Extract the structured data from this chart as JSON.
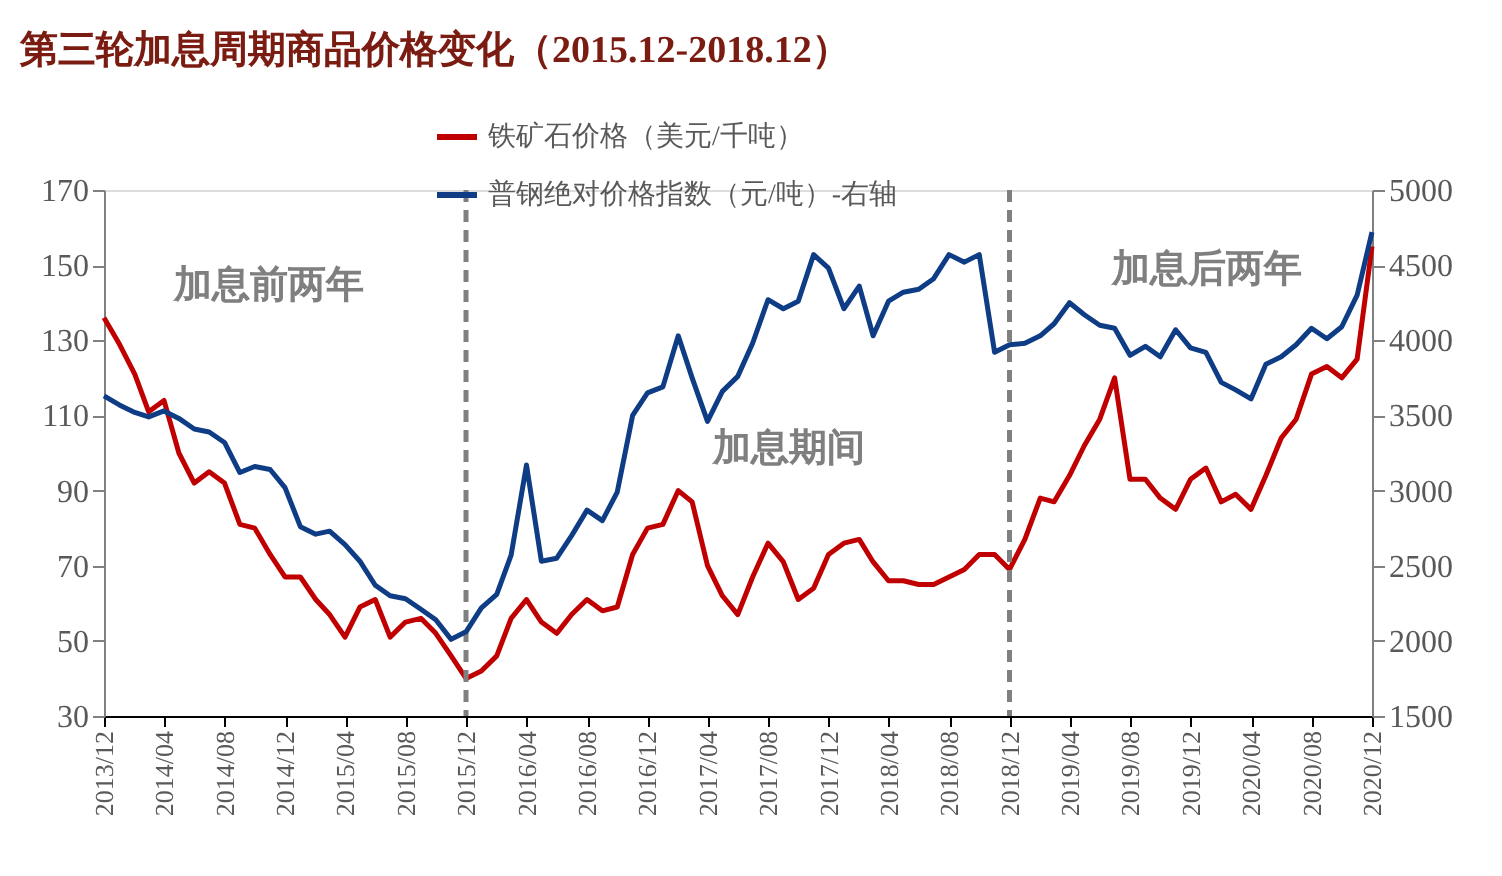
{
  "chart_data": {
    "type": "line",
    "title": "第三轮加息周期商品价格变化（2015.12-2018.12）",
    "x": [
      "2013-12",
      "2014-01",
      "2014-02",
      "2014-03",
      "2014-04",
      "2014-05",
      "2014-06",
      "2014-07",
      "2014-08",
      "2014-09",
      "2014-10",
      "2014-11",
      "2014-12",
      "2015-01",
      "2015-02",
      "2015-03",
      "2015-04",
      "2015-05",
      "2015-06",
      "2015-07",
      "2015-08",
      "2015-09",
      "2015-10",
      "2015-11",
      "2015-12",
      "2016-01",
      "2016-02",
      "2016-03",
      "2016-04",
      "2016-05",
      "2016-06",
      "2016-07",
      "2016-08",
      "2016-09",
      "2016-10",
      "2016-11",
      "2016-12",
      "2017-01",
      "2017-02",
      "2017-03",
      "2017-04",
      "2017-05",
      "2017-06",
      "2017-07",
      "2017-08",
      "2017-09",
      "2017-10",
      "2017-11",
      "2017-12",
      "2018-01",
      "2018-02",
      "2018-03",
      "2018-04",
      "2018-05",
      "2018-06",
      "2018-07",
      "2018-08",
      "2018-09",
      "2018-10",
      "2018-11",
      "2018-12",
      "2019-01",
      "2019-02",
      "2019-03",
      "2019-04",
      "2019-05",
      "2019-06",
      "2019-07",
      "2019-08",
      "2019-09",
      "2019-10",
      "2019-11",
      "2019-12",
      "2020-01",
      "2020-02",
      "2020-03",
      "2020-04",
      "2020-05",
      "2020-06",
      "2020-07",
      "2020-08",
      "2020-09",
      "2020-10",
      "2020-11",
      "2020-12"
    ],
    "series": [
      {
        "name": "铁矿石价格（美元/千吨）",
        "color": "#c00000",
        "values": [
          136,
          129,
          121,
          111,
          114,
          100,
          92,
          95,
          92,
          81,
          80,
          73,
          67,
          67,
          61,
          57,
          51,
          59,
          61,
          51,
          55,
          56,
          52,
          46,
          40,
          42,
          46,
          56,
          61,
          55,
          52,
          57,
          61,
          58,
          59,
          73,
          80,
          81,
          90,
          87,
          70,
          62,
          57,
          67,
          76,
          71,
          61,
          64,
          73,
          76,
          77,
          71,
          66,
          66,
          65,
          65,
          67,
          69,
          73,
          73,
          69,
          77,
          88,
          87,
          94,
          102,
          109,
          120,
          93,
          93,
          88,
          85,
          93,
          96,
          87,
          89,
          85,
          94,
          104,
          109,
          121,
          123,
          120,
          125,
          155
        ]
      },
      {
        "name": "普钢绝对价格指数（元/吨）-右轴",
        "color": "#0e3c85",
        "axis": "y2",
        "values": [
          3630,
          3570,
          3520,
          3490,
          3530,
          3480,
          3410,
          3390,
          3320,
          3120,
          3160,
          3140,
          3020,
          2760,
          2710,
          2730,
          2640,
          2530,
          2370,
          2300,
          2280,
          2210,
          2140,
          2010,
          2060,
          2220,
          2310,
          2570,
          3170,
          2530,
          2550,
          2700,
          2870,
          2800,
          2990,
          3500,
          3650,
          3690,
          4030,
          3750,
          3460,
          3660,
          3760,
          3980,
          4270,
          4210,
          4260,
          4570,
          4480,
          4210,
          4360,
          4030,
          4260,
          4320,
          4340,
          4410,
          4570,
          4520,
          4570,
          3920,
          3970,
          3980,
          4030,
          4110,
          4250,
          4170,
          4100,
          4080,
          3900,
          3960,
          3890,
          4070,
          3950,
          3920,
          3720,
          3670,
          3610,
          3840,
          3890,
          3970,
          4080,
          4010,
          4090,
          4300,
          4720
        ]
      }
    ],
    "xlim": [
      "2013-12",
      "2020-12"
    ],
    "xticks": [
      {
        "value": "2013-12",
        "label": "2013/12"
      },
      {
        "value": "2014-04",
        "label": "2014/04"
      },
      {
        "value": "2014-08",
        "label": "2014/08"
      },
      {
        "value": "2014-12",
        "label": "2014/12"
      },
      {
        "value": "2015-04",
        "label": "2015/04"
      },
      {
        "value": "2015-08",
        "label": "2015/08"
      },
      {
        "value": "2015-12",
        "label": "2015/12"
      },
      {
        "value": "2016-04",
        "label": "2016/04"
      },
      {
        "value": "2016-08",
        "label": "2016/08"
      },
      {
        "value": "2016-12",
        "label": "2016/12"
      },
      {
        "value": "2017-04",
        "label": "2017/04"
      },
      {
        "value": "2017-08",
        "label": "2017/08"
      },
      {
        "value": "2017-12",
        "label": "2017/12"
      },
      {
        "value": "2018-04",
        "label": "2018/04"
      },
      {
        "value": "2018-08",
        "label": "2018/08"
      },
      {
        "value": "2018-12",
        "label": "2018/12"
      },
      {
        "value": "2019-04",
        "label": "2019/04"
      },
      {
        "value": "2019-08",
        "label": "2019/08"
      },
      {
        "value": "2019-12",
        "label": "2019/12"
      },
      {
        "value": "2020-04",
        "label": "2020/04"
      },
      {
        "value": "2020-08",
        "label": "2020/08"
      },
      {
        "value": "2020-12",
        "label": "2020/12"
      }
    ],
    "ylim": [
      30,
      170
    ],
    "yticks": [
      30,
      50,
      70,
      90,
      110,
      130,
      150,
      170
    ],
    "y2lim": [
      1500,
      5000
    ],
    "y2ticks": [
      1500,
      2000,
      2500,
      3000,
      3500,
      4000,
      4500,
      5000
    ],
    "ref_lines": [
      {
        "axis": "x",
        "value": "2015-12",
        "color": "#808080",
        "line_style": "dashed"
      },
      {
        "axis": "x",
        "value": "2018-12",
        "color": "#808080",
        "line_style": "dashed"
      }
    ],
    "annotations": [
      "加息前两年",
      "加息期间",
      "加息后两年"
    ],
    "legend": "top",
    "grid": false,
    "marker": "none",
    "line_style": "solid"
  }
}
